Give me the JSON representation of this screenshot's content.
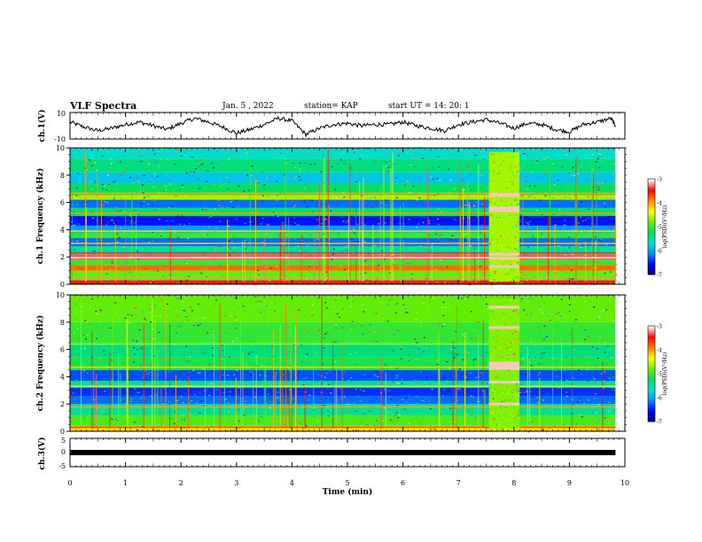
{
  "header": {
    "title": "VLF Spectra",
    "date": "Jan. 5 , 2022",
    "station": "station= KAP",
    "start_ut": "start  UT =   14: 20: 1"
  },
  "chart_data": [
    {
      "type": "line",
      "panel": "ch1-waveform",
      "ylabel": "ch.1(V)",
      "ylim": [
        -10,
        10
      ],
      "yticks": [
        "10",
        "-10"
      ],
      "x": [
        0,
        0.25,
        0.5,
        0.75,
        1.0,
        1.25,
        1.5,
        1.75,
        2.0,
        2.25,
        2.5,
        2.75,
        3.0,
        3.25,
        3.5,
        3.75,
        4.0,
        4.25,
        4.5,
        4.75,
        5.0,
        5.25,
        5.5,
        5.75,
        6.0,
        6.25,
        6.5,
        6.75,
        7.0,
        7.25,
        7.5,
        7.75,
        8.0,
        8.25,
        8.5,
        8.75,
        9.0,
        9.25,
        9.5,
        9.75,
        9.83
      ],
      "y": [
        3,
        -1,
        -4,
        -2,
        1,
        3,
        0,
        -3,
        2,
        6,
        3,
        -1,
        -6,
        -3,
        1,
        6,
        4,
        -7,
        -2,
        1,
        2,
        0,
        1,
        1,
        3,
        0,
        -2,
        -4,
        1,
        3,
        5,
        2,
        -2,
        2,
        1,
        -3,
        -5,
        1,
        3,
        6,
        0
      ]
    },
    {
      "type": "heatmap",
      "panel": "ch1-spectrogram",
      "ylabel": "ch.1 Frequency (kHz)",
      "ylim": [
        0,
        10
      ],
      "yticks": [
        "0",
        "2",
        "4",
        "6",
        "8",
        "10"
      ],
      "xlim": [
        0,
        10
      ],
      "data_end_min": 9.83,
      "colorbar": {
        "label": "log(PSD)(V²/Hz)",
        "range": [
          -7,
          -3
        ],
        "ticks": [
          "-3",
          "-4",
          "-5",
          "-6",
          "-7"
        ]
      },
      "bands": [
        {
          "f0": 0.0,
          "f1": 0.3,
          "log_psd": -3.4
        },
        {
          "f0": 0.3,
          "f1": 1.0,
          "log_psd": -4.8
        },
        {
          "f0": 1.0,
          "f1": 1.4,
          "log_psd": -3.8
        },
        {
          "f0": 1.4,
          "f1": 1.8,
          "log_psd": -5.0
        },
        {
          "f0": 1.8,
          "f1": 2.2,
          "log_psd": -3.3
        },
        {
          "f0": 2.2,
          "f1": 2.8,
          "log_psd": -5.4
        },
        {
          "f0": 2.8,
          "f1": 3.4,
          "log_psd": -6.2
        },
        {
          "f0": 3.4,
          "f1": 3.8,
          "log_psd": -5.0
        },
        {
          "f0": 3.8,
          "f1": 4.3,
          "log_psd": -6.0
        },
        {
          "f0": 4.3,
          "f1": 5.0,
          "log_psd": -6.5
        },
        {
          "f0": 5.0,
          "f1": 5.6,
          "log_psd": -5.2
        },
        {
          "f0": 5.6,
          "f1": 6.2,
          "log_psd": -6.2
        },
        {
          "f0": 6.2,
          "f1": 6.7,
          "log_psd": -4.6
        },
        {
          "f0": 6.7,
          "f1": 7.4,
          "log_psd": -5.2
        },
        {
          "f0": 7.4,
          "f1": 8.2,
          "log_psd": -5.8
        },
        {
          "f0": 8.2,
          "f1": 9.2,
          "log_psd": -5.3
        },
        {
          "f0": 9.2,
          "f1": 10.0,
          "log_psd": -5.6
        }
      ],
      "lines": [
        {
          "f": 0.5,
          "log_psd": -3.2
        },
        {
          "f": 1.95,
          "log_psd": -3.0
        },
        {
          "f": 2.3,
          "log_psd": -3.4
        },
        {
          "f": 3.0,
          "log_psd": -4.2
        },
        {
          "f": 3.9,
          "log_psd": -4.4
        },
        {
          "f": 5.2,
          "log_psd": -4.0
        },
        {
          "f": 6.6,
          "log_psd": -3.8
        }
      ],
      "burst": {
        "t0": 7.55,
        "t1": 8.1,
        "log_psd": -4.6,
        "lines": [
          1.3,
          1.9,
          2.2,
          5.4,
          5.6,
          6.5,
          6.6
        ]
      }
    },
    {
      "type": "heatmap",
      "panel": "ch2-spectrogram",
      "ylabel": "ch.2 Frequency (kHz)",
      "ylim": [
        0,
        10
      ],
      "yticks": [
        "0",
        "2",
        "4",
        "6",
        "8",
        "10"
      ],
      "xlim": [
        0,
        10
      ],
      "data_end_min": 9.83,
      "colorbar": {
        "label": "log(PSD)(V²/Hz)",
        "range": [
          -7,
          -3
        ],
        "ticks": [
          "-3",
          "-4",
          "-5",
          "-6",
          "-7"
        ]
      },
      "bands": [
        {
          "f0": 0.0,
          "f1": 0.4,
          "log_psd": -4.2
        },
        {
          "f0": 0.4,
          "f1": 1.2,
          "log_psd": -4.9
        },
        {
          "f0": 1.2,
          "f1": 2.0,
          "log_psd": -5.4
        },
        {
          "f0": 2.0,
          "f1": 2.6,
          "log_psd": -6.2
        },
        {
          "f0": 2.6,
          "f1": 3.2,
          "log_psd": -6.4
        },
        {
          "f0": 3.2,
          "f1": 3.7,
          "log_psd": -5.4
        },
        {
          "f0": 3.7,
          "f1": 4.5,
          "log_psd": -6.3
        },
        {
          "f0": 4.5,
          "f1": 5.4,
          "log_psd": -5.1
        },
        {
          "f0": 5.4,
          "f1": 6.5,
          "log_psd": -5.3
        },
        {
          "f0": 6.5,
          "f1": 8.0,
          "log_psd": -5.0
        },
        {
          "f0": 8.0,
          "f1": 10.0,
          "log_psd": -4.8
        }
      ],
      "lines": [
        {
          "f": 0.3,
          "log_psd": -3.6
        },
        {
          "f": 1.8,
          "log_psd": -4.0
        },
        {
          "f": 3.3,
          "log_psd": -4.3
        },
        {
          "f": 4.7,
          "log_psd": -4.2
        },
        {
          "f": 6.4,
          "log_psd": -4.5
        }
      ],
      "burst": {
        "t0": 7.55,
        "t1": 8.1,
        "log_psd": -4.7,
        "lines": [
          2.0,
          3.6,
          4.6,
          4.8,
          5.0,
          7.6,
          9.1
        ]
      }
    },
    {
      "type": "line",
      "panel": "ch3-waveform",
      "ylabel": "ch.3(V)",
      "ylim": [
        -5,
        5
      ],
      "yticks": [
        "5",
        "0",
        "-5"
      ],
      "x": [
        0,
        9.83
      ],
      "y": [
        0,
        0
      ]
    }
  ],
  "x_axis": {
    "label": "Time  (min)",
    "ticks": [
      "0",
      "1",
      "2",
      "3",
      "4",
      "5",
      "6",
      "7",
      "8",
      "9",
      "10"
    ],
    "range": [
      0,
      10
    ]
  },
  "colors": {
    "scale": [
      "#000066",
      "#0000ff",
      "#0088ff",
      "#00dddd",
      "#00dd66",
      "#66ee00",
      "#ffff00",
      "#ff8800",
      "#ff0000",
      "#ffffff"
    ]
  }
}
